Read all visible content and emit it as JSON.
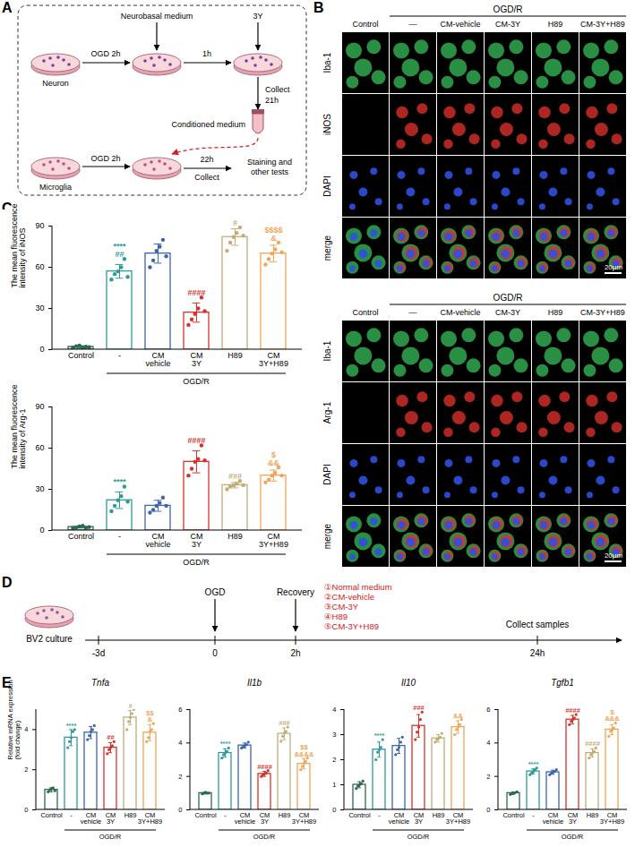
{
  "chart_data": [
    {
      "panel": "C",
      "type": "bar",
      "ylabel": "The mean fluorescence intensity of iNOS",
      "categories": [
        "Control",
        "-",
        "CM vehicle",
        "CM 3Y",
        "H89",
        "CM 3Y+H89"
      ],
      "group_label": "OGD/R",
      "colors": [
        "#2d6a4f",
        "#2e9a9a",
        "#3a66b0",
        "#d7322a",
        "#c2ad78",
        "#f2a55a"
      ],
      "values": [
        2,
        57,
        70,
        27,
        82,
        70
      ],
      "sd": [
        0.8,
        5,
        7,
        7,
        6,
        6
      ],
      "points": [
        [
          1.5,
          2.5,
          3.0,
          1.2,
          2.2,
          1.8
        ],
        [
          51,
          55,
          57,
          60,
          66,
          53
        ],
        [
          60,
          65,
          72,
          75,
          80,
          68
        ],
        [
          18,
          22,
          26,
          30,
          38,
          28
        ],
        [
          72,
          78,
          82,
          85,
          89,
          83
        ],
        [
          62,
          66,
          70,
          73,
          78,
          71
        ]
      ],
      "significance": [
        [],
        [
          "****",
          "##"
        ],
        [],
        [
          "####"
        ],
        [
          "#"
        ],
        [
          "$$$$",
          "&"
        ]
      ],
      "ylim": [
        0,
        90
      ],
      "yticks": [
        0,
        30,
        60,
        90
      ]
    },
    {
      "type": "bar",
      "ylabel": "The mean fluorescence intensity of Arg-1",
      "categories": [
        "Control",
        "-",
        "CM vehicle",
        "CM 3Y",
        "H89",
        "CM 3Y+H89"
      ],
      "group_label": "OGD/R",
      "colors": [
        "#2d6a4f",
        "#2e9a9a",
        "#3a66b0",
        "#d7322a",
        "#c2ad78",
        "#f2a55a"
      ],
      "values": [
        2.5,
        22,
        18,
        50,
        33,
        40
      ],
      "sd": [
        0.7,
        6,
        4,
        8,
        2,
        4
      ],
      "points": [
        [
          1.8,
          2.2,
          3.0,
          3.5,
          2.0,
          2.5
        ],
        [
          14,
          18,
          22,
          25,
          32,
          21
        ],
        [
          13,
          15,
          18,
          20,
          24,
          18
        ],
        [
          40,
          45,
          50,
          52,
          62,
          51
        ],
        [
          30,
          32,
          33,
          34,
          36,
          33
        ],
        [
          35,
          37,
          40,
          42,
          46,
          40
        ]
      ],
      "significance": [
        [],
        [
          "****"
        ],
        [],
        [
          "####"
        ],
        [
          "###"
        ],
        [
          "$",
          "&&"
        ]
      ],
      "ylim": [
        0,
        90
      ],
      "yticks": [
        0,
        30,
        60,
        90
      ]
    },
    {
      "panel": "E",
      "type": "bar",
      "title": "Tnfa",
      "ylabel": "Relative mRNA expression (fold change)",
      "categories": [
        "Control",
        "-",
        "CM vehicle",
        "CM 3Y",
        "H89",
        "CM 3Y+H89"
      ],
      "group_label": "OGD/R",
      "colors": [
        "#2d6a4f",
        "#2e9a9a",
        "#3a66b0",
        "#d7322a",
        "#c2ad78",
        "#f2a55a"
      ],
      "values": [
        1.0,
        3.6,
        3.85,
        3.1,
        4.6,
        3.85
      ],
      "sd": [
        0.1,
        0.4,
        0.3,
        0.25,
        0.35,
        0.4
      ],
      "points": [
        [
          0.9,
          1.0,
          1.05,
          1.1,
          0.95
        ],
        [
          3.1,
          3.4,
          3.6,
          3.9,
          4.0
        ],
        [
          3.5,
          3.7,
          3.9,
          4.0,
          4.2
        ],
        [
          2.8,
          3.0,
          3.1,
          3.2,
          3.4
        ],
        [
          4.0,
          4.4,
          4.6,
          4.8,
          5.0
        ],
        [
          3.4,
          3.6,
          3.9,
          4.0,
          4.3
        ]
      ],
      "significance": [
        [],
        [
          "****"
        ],
        [],
        [
          "##"
        ],
        [
          "#"
        ],
        [
          "$$",
          "&"
        ]
      ],
      "ylim": [
        0,
        5
      ],
      "yticks": [
        0,
        2,
        4
      ]
    },
    {
      "type": "bar",
      "title": "Il1b",
      "categories": [
        "Control",
        "-",
        "CM vehicle",
        "CM 3Y",
        "H89",
        "CM 3Y+H89"
      ],
      "group_label": "OGD/R",
      "colors": [
        "#2d6a4f",
        "#2e9a9a",
        "#3a66b0",
        "#d7322a",
        "#c2ad78",
        "#f2a55a"
      ],
      "values": [
        1.0,
        3.4,
        3.85,
        2.15,
        4.55,
        2.75
      ],
      "sd": [
        0.05,
        0.25,
        0.15,
        0.15,
        0.35,
        0.3
      ],
      "points": [
        [
          0.95,
          1.0,
          1.05,
          1.0,
          1.0
        ],
        [
          3.1,
          3.3,
          3.4,
          3.5,
          3.7
        ],
        [
          3.7,
          3.8,
          3.85,
          3.9,
          4.05
        ],
        [
          2.0,
          2.1,
          2.15,
          2.2,
          2.35
        ],
        [
          4.1,
          4.4,
          4.6,
          4.7,
          4.95
        ],
        [
          2.4,
          2.6,
          2.8,
          2.9,
          3.1
        ]
      ],
      "significance": [
        [],
        [
          "****"
        ],
        [],
        [
          "####"
        ],
        [
          "###"
        ],
        [
          "$$",
          "&&&&"
        ]
      ],
      "ylim": [
        0,
        6
      ],
      "yticks": [
        0,
        2,
        4,
        6
      ]
    },
    {
      "type": "bar",
      "title": "Il10",
      "categories": [
        "Control",
        "-",
        "CM vehicle",
        "CM 3Y",
        "H89",
        "CM 3Y+H89"
      ],
      "group_label": "OGD/R",
      "colors": [
        "#2d6a4f",
        "#2e9a9a",
        "#3a66b0",
        "#d7322a",
        "#c2ad78",
        "#f2a55a"
      ],
      "values": [
        1.0,
        2.4,
        2.55,
        3.35,
        2.85,
        3.3
      ],
      "sd": [
        0.12,
        0.3,
        0.3,
        0.45,
        0.15,
        0.25
      ],
      "points": [
        [
          0.85,
          0.95,
          1.0,
          1.05,
          1.15
        ],
        [
          2.0,
          2.3,
          2.4,
          2.5,
          2.8
        ],
        [
          2.2,
          2.4,
          2.5,
          2.7,
          2.9
        ],
        [
          2.8,
          3.1,
          3.3,
          3.6,
          3.9
        ],
        [
          2.7,
          2.8,
          2.85,
          2.9,
          3.05
        ],
        [
          3.0,
          3.2,
          3.3,
          3.4,
          3.6
        ]
      ],
      "significance": [
        [],
        [
          "****"
        ],
        [],
        [
          "###"
        ],
        [],
        [
          "&&"
        ]
      ],
      "ylim": [
        0,
        4
      ],
      "yticks": [
        0,
        1,
        2,
        3,
        4
      ]
    },
    {
      "type": "bar",
      "title": "Tgfb1",
      "categories": [
        "Control",
        "-",
        "CM vehicle",
        "CM 3Y",
        "H89",
        "CM 3Y+H89"
      ],
      "group_label": "OGD/R",
      "colors": [
        "#2d6a4f",
        "#2e9a9a",
        "#3a66b0",
        "#d7322a",
        "#c2ad78",
        "#f2a55a"
      ],
      "values": [
        1.0,
        2.3,
        2.25,
        5.4,
        3.4,
        4.8
      ],
      "sd": [
        0.07,
        0.15,
        0.12,
        0.25,
        0.25,
        0.3
      ],
      "points": [
        [
          0.92,
          0.97,
          1.0,
          1.03,
          1.08
        ],
        [
          2.1,
          2.2,
          2.3,
          2.4,
          2.5
        ],
        [
          2.1,
          2.2,
          2.25,
          2.3,
          2.4
        ],
        [
          5.1,
          5.3,
          5.4,
          5.5,
          5.7
        ],
        [
          3.1,
          3.3,
          3.4,
          3.5,
          3.7
        ],
        [
          4.4,
          4.7,
          4.8,
          4.9,
          5.2
        ]
      ],
      "significance": [
        [],
        [
          "****"
        ],
        [],
        [
          "####"
        ],
        [
          "####"
        ],
        [
          "$",
          "&&&"
        ]
      ],
      "ylim": [
        0,
        6
      ],
      "yticks": [
        0,
        2,
        4,
        6
      ]
    }
  ],
  "panel_A": {
    "letter": "A",
    "top_row": {
      "cells": "Neuron",
      "step1": "OGD 2h",
      "medium": "Neurobasal medium",
      "step2": "1h",
      "treatment": "3Y",
      "collect": "Collect",
      "collect_time": "21h",
      "product": "Conditioned medium"
    },
    "bottom_row": {
      "cells": "Microglia",
      "step1": "OGD 2h",
      "step2_time": "22h",
      "step2": "Collect",
      "result": "Staining and other tests"
    }
  },
  "panel_B": {
    "letter": "B",
    "group": "OGD/R",
    "columns": [
      "Control",
      "—",
      "CM-vehicle",
      "CM-3Y",
      "H89",
      "CM-3Y+H89"
    ],
    "blocks": [
      {
        "rows": [
          "Iba-1",
          "iNOS",
          "DAPI",
          "merge"
        ],
        "scale_bar": "20μm"
      },
      {
        "rows": [
          "Iba-1",
          "Arg-1",
          "DAPI",
          "merge"
        ],
        "scale_bar": "20μm"
      }
    ]
  },
  "panel_D": {
    "letter": "D",
    "culture": "BV2 culture",
    "timepoints": [
      "-3d",
      "0",
      "2h",
      "24h"
    ],
    "events": [
      "OGD",
      "Recovery",
      "Collect samples"
    ],
    "treatments": [
      "①Normal medium",
      "②CM-vehicle",
      "③CM-3Y",
      "④H89",
      "⑤CM-3Y+H89"
    ]
  }
}
